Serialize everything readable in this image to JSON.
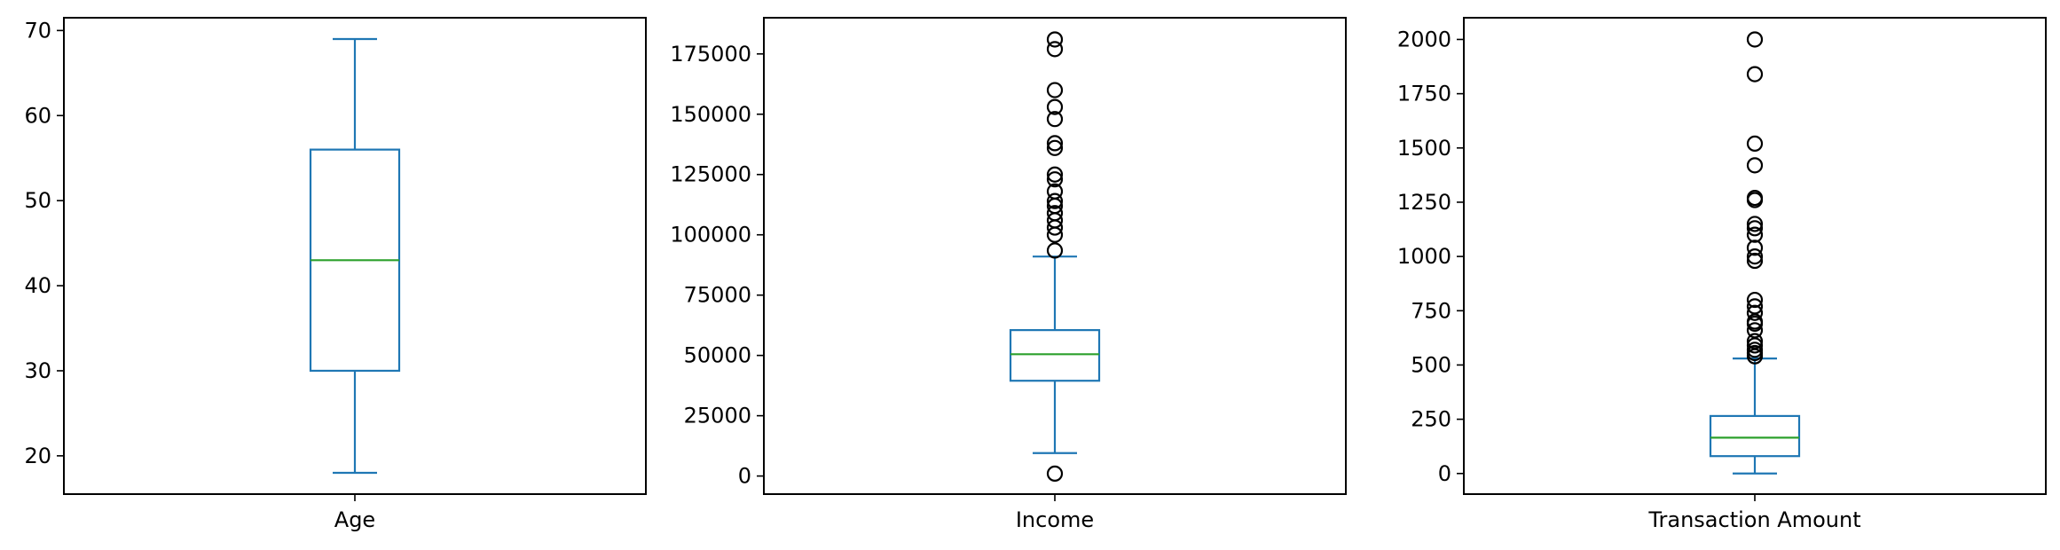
{
  "chart_data": [
    {
      "type": "box",
      "category": "Age",
      "ylim": [
        15.5,
        71.5
      ],
      "yticks": [
        20,
        30,
        40,
        50,
        60,
        70
      ],
      "tick_labels": [
        "20",
        "30",
        "40",
        "50",
        "60",
        "70"
      ],
      "whisker_low": 18,
      "q1": 30,
      "median": 43,
      "q3": 56,
      "whisker_high": 69,
      "fliers": []
    },
    {
      "type": "box",
      "category": "Income",
      "ylim": [
        -7500,
        190000
      ],
      "yticks": [
        0,
        25000,
        50000,
        75000,
        100000,
        125000,
        150000,
        175000
      ],
      "tick_labels": [
        "0",
        "25000",
        "50000",
        "75000",
        "100000",
        "125000",
        "150000",
        "175000"
      ],
      "whisker_low": 9500,
      "q1": 39500,
      "median": 50500,
      "q3": 60500,
      "whisker_high": 91000,
      "fliers": [
        1000,
        93500,
        100000,
        103000,
        106000,
        109000,
        112000,
        114000,
        118000,
        123000,
        125000,
        136000,
        138000,
        148000,
        153000,
        160000,
        177000,
        181000
      ]
    },
    {
      "type": "box",
      "category": "Transaction Amount",
      "ylim": [
        -95,
        2100
      ],
      "yticks": [
        0,
        250,
        500,
        750,
        1000,
        1250,
        1500,
        1750,
        2000
      ],
      "tick_labels": [
        "0",
        "250",
        "500",
        "750",
        "1000",
        "1250",
        "1500",
        "1750",
        "2000"
      ],
      "whisker_low": 0,
      "q1": 80,
      "median": 165,
      "q3": 265,
      "whisker_high": 530,
      "fliers": [
        540,
        555,
        570,
        590,
        610,
        660,
        690,
        700,
        740,
        770,
        800,
        980,
        1000,
        1040,
        1100,
        1130,
        1150,
        1260,
        1270,
        1420,
        1520,
        1840,
        2000
      ]
    }
  ],
  "colors": {
    "box": "#1f77b4",
    "median": "#2ca02c",
    "flier": "#000000",
    "frame": "#000000"
  }
}
